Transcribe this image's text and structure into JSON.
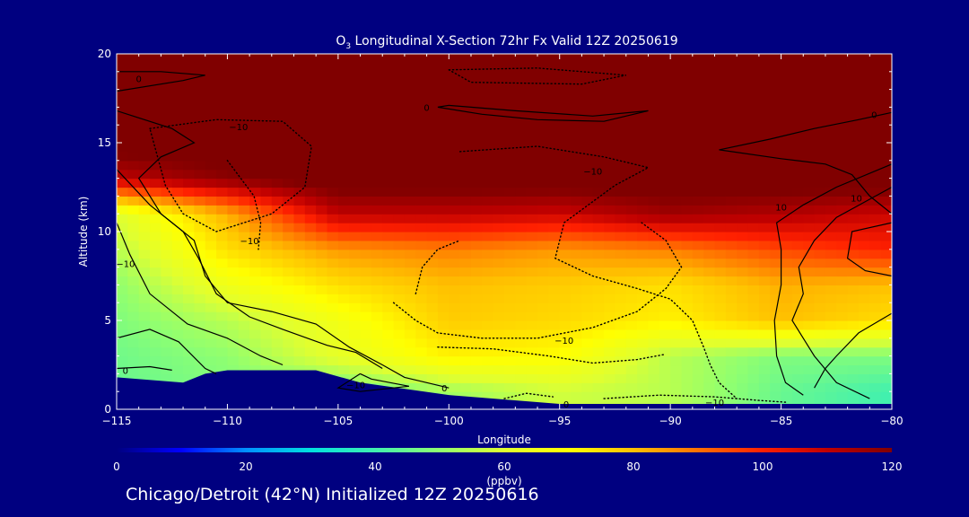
{
  "chart_data": {
    "type": "heatmap",
    "title": "O3 Longitudinal X-Section 72hr  Fx Valid 12Z 20250619",
    "title_parts": {
      "species": "O",
      "subscript": "3",
      "rest": " Longitudinal X-Section 72hr  Fx Valid 12Z 20250619"
    },
    "xlabel": "Longitude",
    "ylabel": "Altitude (km)",
    "xlim": [
      -115,
      -80
    ],
    "ylim": [
      0,
      20
    ],
    "x_ticks": [
      -115,
      -110,
      -105,
      -100,
      -95,
      -90,
      -85,
      -80
    ],
    "x_tick_labels": [
      "−115",
      "−110",
      "−105",
      "−100",
      "−95",
      "−90",
      "−85",
      "−80"
    ],
    "y_ticks": [
      0,
      5,
      10,
      15,
      20
    ],
    "y_tick_labels": [
      "0",
      "5",
      "10",
      "15",
      "20"
    ],
    "colorbar": {
      "min": 0,
      "max": 120,
      "ticks": [
        0,
        20,
        40,
        60,
        80,
        100,
        120
      ],
      "tick_labels": [
        "0",
        "20",
        "40",
        "60",
        "80",
        "100",
        "120"
      ],
      "units": "(ppbv)"
    },
    "colormap": [
      "#000080",
      "#0000ff",
      "#0090ff",
      "#00e0e0",
      "#40f0b0",
      "#90ff70",
      "#e0ff30",
      "#ffff00",
      "#ffc000",
      "#ff7000",
      "#ff2000",
      "#c00000",
      "#800000"
    ],
    "ozone_ppbv": {
      "longitudes": [
        -115,
        -110,
        -105,
        -100,
        -95,
        -90,
        -85,
        -80
      ],
      "altitudes_km": [
        1,
        3,
        5,
        7,
        9,
        11,
        13,
        15,
        17,
        19
      ],
      "values": [
        [
          45,
          48,
          45,
          52,
          58,
          55,
          45,
          40
        ],
        [
          46,
          50,
          62,
          72,
          70,
          55,
          48,
          48
        ],
        [
          48,
          55,
          66,
          78,
          76,
          72,
          80,
          75
        ],
        [
          50,
          65,
          75,
          80,
          78,
          75,
          82,
          80
        ],
        [
          55,
          75,
          85,
          88,
          85,
          88,
          95,
          100
        ],
        [
          60,
          82,
          110,
          110,
          108,
          115,
          112,
          108
        ],
        [
          110,
          118,
          125,
          125,
          125,
          125,
          125,
          125
        ],
        [
          125,
          125,
          125,
          125,
          125,
          125,
          125,
          125
        ],
        [
          125,
          125,
          125,
          125,
          125,
          125,
          125,
          125
        ],
        [
          125,
          125,
          125,
          125,
          125,
          125,
          125,
          125
        ]
      ]
    },
    "terrain_km": {
      "longitudes": [
        -115,
        -112,
        -111,
        -110,
        -106,
        -104,
        -100,
        -95,
        -90,
        -85,
        -80
      ],
      "heights": [
        1.8,
        1.5,
        2.0,
        2.2,
        2.2,
        1.5,
        0.8,
        0.3,
        0.3,
        0.3,
        0.3
      ]
    },
    "contour_labels": [
      {
        "text": "0",
        "lon": -114,
        "alt": 18.6
      },
      {
        "text": "0",
        "lon": -101,
        "alt": 17.0
      },
      {
        "text": "0",
        "lon": -80.8,
        "alt": 16.6
      },
      {
        "text": "−10",
        "lon": -109.5,
        "alt": 15.9
      },
      {
        "text": "−10",
        "lon": -93.5,
        "alt": 13.4
      },
      {
        "text": "−10",
        "lon": -109.0,
        "alt": 9.5
      },
      {
        "text": "−10",
        "lon": -114.6,
        "alt": 8.2
      },
      {
        "text": "−10",
        "lon": -94.8,
        "alt": 3.9
      },
      {
        "text": "−10",
        "lon": -104.2,
        "alt": 1.4
      },
      {
        "text": "−10",
        "lon": -88.0,
        "alt": 0.4
      },
      {
        "text": "0",
        "lon": -114.6,
        "alt": 2.2
      },
      {
        "text": "0",
        "lon": -100.2,
        "alt": 1.2
      },
      {
        "text": "0",
        "lon": -94.7,
        "alt": 0.3
      },
      {
        "text": "10",
        "lon": -85.0,
        "alt": 11.4
      },
      {
        "text": "10",
        "lon": -81.6,
        "alt": 11.9
      }
    ],
    "contours": [
      {
        "style": "solid",
        "points": [
          [
            -115,
            17.9
          ],
          [
            -112,
            18.5
          ],
          [
            -111,
            18.8
          ],
          [
            -113,
            19.0
          ],
          [
            -115,
            19.0
          ]
        ]
      },
      {
        "style": "solid",
        "points": [
          [
            -115,
            16.8
          ],
          [
            -112.5,
            15.8
          ],
          [
            -111.5,
            15.0
          ],
          [
            -113,
            14.2
          ],
          [
            -114,
            13.0
          ],
          [
            -113,
            11.0
          ],
          [
            -111.5,
            9.5
          ],
          [
            -111,
            7.5
          ],
          [
            -110,
            6.0
          ],
          [
            -108,
            5.5
          ],
          [
            -106,
            4.8
          ],
          [
            -104.5,
            3.5
          ],
          [
            -103,
            2.5
          ],
          [
            -102,
            1.8
          ],
          [
            -101,
            1.5
          ],
          [
            -100,
            1.2
          ]
        ]
      },
      {
        "style": "solid",
        "points": [
          [
            -115,
            13.5
          ],
          [
            -113.5,
            11.5
          ],
          [
            -112,
            10.0
          ],
          [
            -111.3,
            8.5
          ],
          [
            -110.5,
            6.5
          ],
          [
            -109,
            5.2
          ],
          [
            -107.5,
            4.5
          ],
          [
            -105.5,
            3.6
          ],
          [
            -104.2,
            3.2
          ],
          [
            -103,
            2.3
          ]
        ]
      },
      {
        "style": "solid",
        "points": [
          [
            -115,
            10.5
          ],
          [
            -114.4,
            8.7
          ],
          [
            -113.5,
            6.5
          ],
          [
            -111.8,
            4.8
          ],
          [
            -110,
            4.0
          ],
          [
            -108.5,
            3.0
          ],
          [
            -107.5,
            2.5
          ]
        ]
      },
      {
        "style": "solid",
        "points": [
          [
            -115,
            4.0
          ],
          [
            -113.5,
            4.5
          ],
          [
            -112.2,
            3.8
          ],
          [
            -111,
            2.3
          ],
          [
            -110.5,
            2.0
          ]
        ]
      },
      {
        "style": "solid",
        "points": [
          [
            -115,
            2.3
          ],
          [
            -113.5,
            2.4
          ],
          [
            -112.5,
            2.2
          ]
        ]
      },
      {
        "style": "solid",
        "points": [
          [
            -104,
            2.0
          ],
          [
            -103.5,
            1.7
          ],
          [
            -101.8,
            1.3
          ],
          [
            -104,
            1.0
          ],
          [
            -105,
            1.2
          ],
          [
            -104,
            2.0
          ]
        ]
      },
      {
        "style": "solid",
        "points": [
          [
            -100.5,
            17.0
          ],
          [
            -98.5,
            16.6
          ],
          [
            -96,
            16.3
          ],
          [
            -93,
            16.2
          ],
          [
            -91,
            16.8
          ],
          [
            -93.5,
            16.5
          ],
          [
            -97,
            16.8
          ],
          [
            -100,
            17.1
          ],
          [
            -100.5,
            17.0
          ]
        ]
      },
      {
        "style": "solid",
        "points": [
          [
            -80,
            16.7
          ],
          [
            -81.5,
            16.3
          ],
          [
            -83.5,
            15.8
          ],
          [
            -85.5,
            15.2
          ],
          [
            -87.8,
            14.6
          ],
          [
            -85,
            14.1
          ],
          [
            -83,
            13.8
          ],
          [
            -81.8,
            13.2
          ],
          [
            -81.0,
            12.0
          ],
          [
            -80,
            11.0
          ]
        ]
      },
      {
        "style": "solid",
        "points": [
          [
            -80,
            13.8
          ],
          [
            -82.5,
            12.5
          ],
          [
            -84,
            11.5
          ],
          [
            -85.2,
            10.5
          ],
          [
            -85.0,
            9.0
          ],
          [
            -85.0,
            7.0
          ],
          [
            -85.3,
            5.0
          ],
          [
            -85.2,
            3.0
          ],
          [
            -84.8,
            1.5
          ],
          [
            -84.0,
            0.8
          ]
        ]
      },
      {
        "style": "solid",
        "points": [
          [
            -80,
            12.5
          ],
          [
            -82.5,
            10.8
          ],
          [
            -83.5,
            9.5
          ],
          [
            -84.2,
            8.0
          ],
          [
            -84.0,
            6.5
          ],
          [
            -84.5,
            5.0
          ],
          [
            -83.5,
            3.0
          ],
          [
            -82.5,
            1.5
          ],
          [
            -81.0,
            0.6
          ]
        ]
      },
      {
        "style": "solid",
        "points": [
          [
            -80,
            5.4
          ],
          [
            -81.5,
            4.3
          ],
          [
            -82.5,
            3.0
          ],
          [
            -83.0,
            2.3
          ],
          [
            -83.5,
            1.2
          ]
        ]
      },
      {
        "style": "solid",
        "points": [
          [
            -80,
            10.5
          ],
          [
            -81.8,
            10.0
          ],
          [
            -82.0,
            8.5
          ],
          [
            -81.2,
            7.8
          ],
          [
            -80,
            7.5
          ]
        ]
      },
      {
        "style": "dotted",
        "points": [
          [
            -100,
            19.1
          ],
          [
            -96,
            19.2
          ],
          [
            -92,
            18.8
          ],
          [
            -94,
            18.3
          ],
          [
            -99,
            18.4
          ],
          [
            -100,
            19.1
          ]
        ]
      },
      {
        "style": "dotted",
        "points": [
          [
            -113.5,
            15.8
          ],
          [
            -110.5,
            16.3
          ],
          [
            -107.5,
            16.2
          ],
          [
            -106.2,
            14.8
          ],
          [
            -106.5,
            12.5
          ],
          [
            -108,
            11.0
          ],
          [
            -110.5,
            10.0
          ],
          [
            -112,
            11.0
          ],
          [
            -112.8,
            12.6
          ],
          [
            -113.5,
            15.8
          ]
        ]
      },
      {
        "style": "dotted",
        "points": [
          [
            -110,
            14.0
          ],
          [
            -108.8,
            12.0
          ],
          [
            -108.5,
            10.5
          ],
          [
            -108.6,
            9.0
          ]
        ]
      },
      {
        "style": "dotted",
        "points": [
          [
            -99.5,
            14.5
          ],
          [
            -96,
            14.8
          ],
          [
            -93,
            14.2
          ],
          [
            -91,
            13.6
          ],
          [
            -92.5,
            12.6
          ],
          [
            -94.8,
            10.5
          ],
          [
            -95.2,
            8.5
          ],
          [
            -93.5,
            7.5
          ],
          [
            -91.5,
            6.8
          ],
          [
            -90,
            6.2
          ],
          [
            -89,
            5.0
          ],
          [
            -88.5,
            3.5
          ],
          [
            -88.2,
            2.5
          ],
          [
            -87.8,
            1.5
          ],
          [
            -87.0,
            0.6
          ]
        ]
      },
      {
        "style": "dotted",
        "points": [
          [
            -102.5,
            6.0
          ],
          [
            -101.5,
            5.0
          ],
          [
            -100.5,
            4.3
          ],
          [
            -98.5,
            4.0
          ],
          [
            -96,
            4.0
          ],
          [
            -93.5,
            4.6
          ],
          [
            -91.5,
            5.5
          ],
          [
            -90.2,
            6.8
          ],
          [
            -89.5,
            8.0
          ],
          [
            -90.2,
            9.5
          ],
          [
            -91.3,
            10.5
          ]
        ]
      },
      {
        "style": "dotted",
        "points": [
          [
            -101.5,
            6.5
          ],
          [
            -101.2,
            8.0
          ],
          [
            -100.5,
            9.0
          ],
          [
            -99.5,
            9.5
          ]
        ]
      },
      {
        "style": "dotted",
        "points": [
          [
            -100.5,
            3.5
          ],
          [
            -98,
            3.4
          ],
          [
            -95.5,
            3.0
          ],
          [
            -93.5,
            2.6
          ],
          [
            -91.5,
            2.8
          ],
          [
            -90.2,
            3.1
          ]
        ]
      },
      {
        "style": "dotted",
        "points": [
          [
            -93,
            0.6
          ],
          [
            -90.5,
            0.8
          ],
          [
            -88,
            0.7
          ],
          [
            -86,
            0.5
          ],
          [
            -84.8,
            0.4
          ]
        ]
      },
      {
        "style": "dotted",
        "points": [
          [
            -97.5,
            0.6
          ],
          [
            -96.5,
            0.9
          ],
          [
            -95.3,
            0.7
          ]
        ]
      }
    ]
  },
  "caption": "Chicago/Detroit (42°N) Initialized 12Z 20250616",
  "colors": {
    "background": "#000080",
    "text": "#ffffff",
    "contour": "#000000",
    "terrain": "#000080"
  }
}
